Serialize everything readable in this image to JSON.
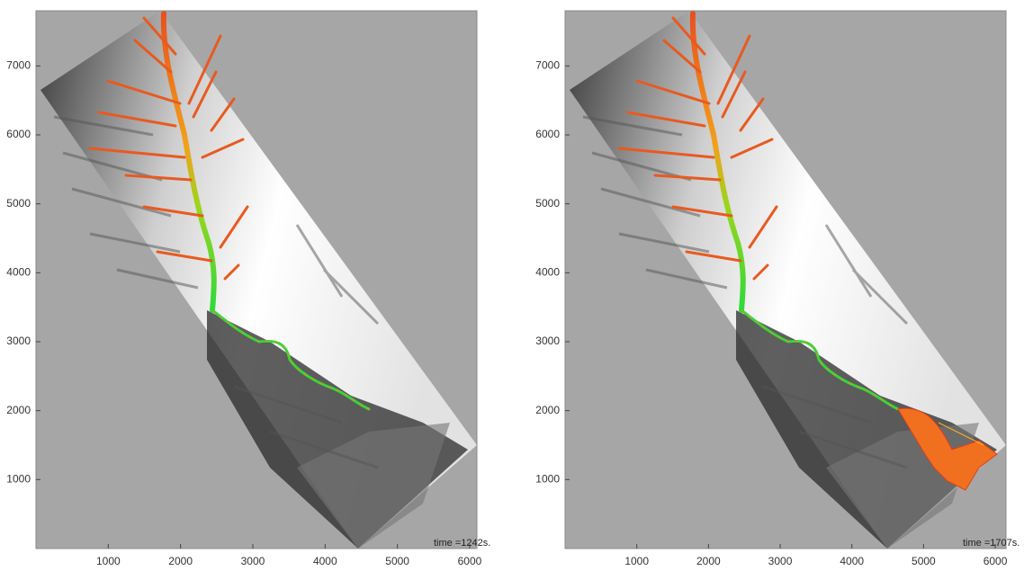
{
  "chart_data": [
    {
      "type": "map",
      "xlim": [
        0,
        6100
      ],
      "ylim": [
        0,
        7800
      ],
      "xticks": [
        1000,
        2000,
        3000,
        4000,
        5000,
        6000
      ],
      "yticks": [
        1000,
        2000,
        3000,
        4000,
        5000,
        6000,
        7000
      ],
      "annotation": "time =1242s."
    },
    {
      "type": "map",
      "xlim": [
        0,
        6150
      ],
      "ylim": [
        0,
        7800
      ],
      "xticks": [
        1000,
        2000,
        3000,
        4000,
        5000,
        6000
      ],
      "yticks": [
        1000,
        2000,
        3000,
        4000,
        5000,
        6000,
        7000
      ],
      "annotation": "time =1707s."
    }
  ]
}
